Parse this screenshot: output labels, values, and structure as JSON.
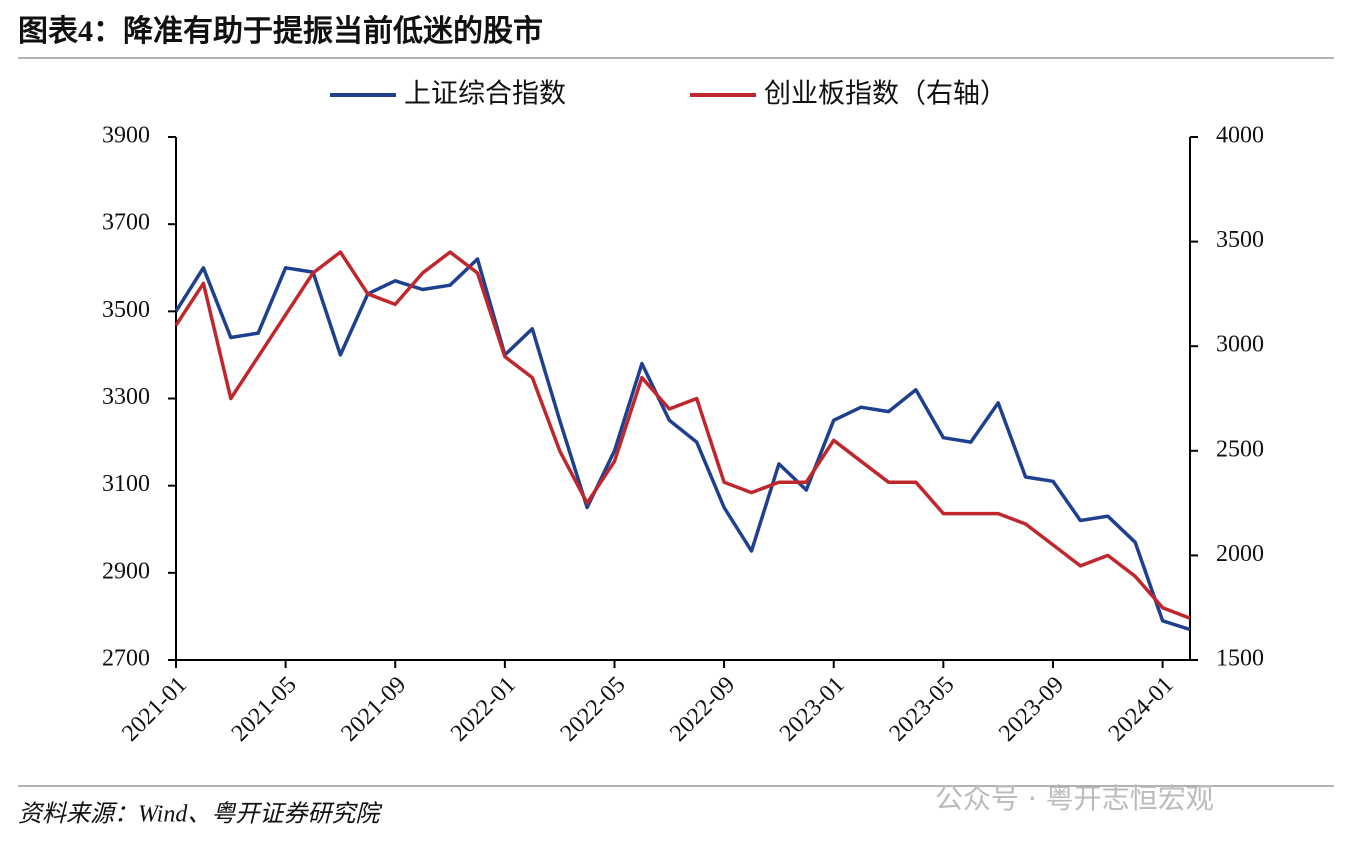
{
  "chart_data": {
    "type": "line",
    "title": "图表4：降准有助于提振当前低迷的股市",
    "source": "资料来源：Wind、粤开证券研究院",
    "watermark": "公众号 · 粤开志恒宏观",
    "x": [
      "2021-01",
      "2021-02",
      "2021-03",
      "2021-04",
      "2021-05",
      "2021-06",
      "2021-07",
      "2021-08",
      "2021-09",
      "2021-10",
      "2021-11",
      "2021-12",
      "2022-01",
      "2022-02",
      "2022-03",
      "2022-04",
      "2022-05",
      "2022-06",
      "2022-07",
      "2022-08",
      "2022-09",
      "2022-10",
      "2022-11",
      "2022-12",
      "2023-01",
      "2023-02",
      "2023-03",
      "2023-04",
      "2023-05",
      "2023-06",
      "2023-07",
      "2023-08",
      "2023-09",
      "2023-10",
      "2023-11",
      "2023-12",
      "2024-01",
      "2024-02"
    ],
    "series": [
      {
        "name": "上证综合指数",
        "color": "#1f3f8f",
        "values": [
          3500,
          3600,
          3440,
          3450,
          3600,
          3590,
          3400,
          3540,
          3570,
          3550,
          3560,
          3620,
          3400,
          3460,
          3250,
          3050,
          3180,
          3380,
          3250,
          3200,
          3050,
          2950,
          3150,
          3090,
          3250,
          3280,
          3270,
          3320,
          3210,
          3200,
          3290,
          3120,
          3110,
          3020,
          3030,
          2970,
          2790,
          2770
        ]
      },
      {
        "name": "创业板指数（右轴）",
        "color": "#c0272d",
        "axis": "y2",
        "values": [
          3100,
          3300,
          2750,
          2950,
          3150,
          3350,
          3450,
          3250,
          3200,
          3350,
          3450,
          3350,
          2950,
          2850,
          2500,
          2250,
          2450,
          2850,
          2700,
          2750,
          2350,
          2300,
          2350,
          2350,
          2550,
          2450,
          2350,
          2350,
          2200,
          2200,
          2200,
          2150,
          2050,
          1950,
          2000,
          1900,
          1750,
          1700
        ]
      }
    ],
    "xlim": [
      "2021-01",
      "2024-02"
    ],
    "xticks": [
      "2021-01",
      "2021-05",
      "2021-09",
      "2022-01",
      "2022-05",
      "2022-09",
      "2023-01",
      "2023-05",
      "2023-09",
      "2024-01"
    ],
    "ylim": [
      2700,
      3900
    ],
    "yticks": [
      2700,
      2900,
      3100,
      3300,
      3500,
      3700,
      3900
    ],
    "y2lim": [
      1500,
      4000
    ],
    "y2ticks": [
      1500,
      2000,
      2500,
      3000,
      3500,
      4000
    ],
    "legend": "top"
  }
}
